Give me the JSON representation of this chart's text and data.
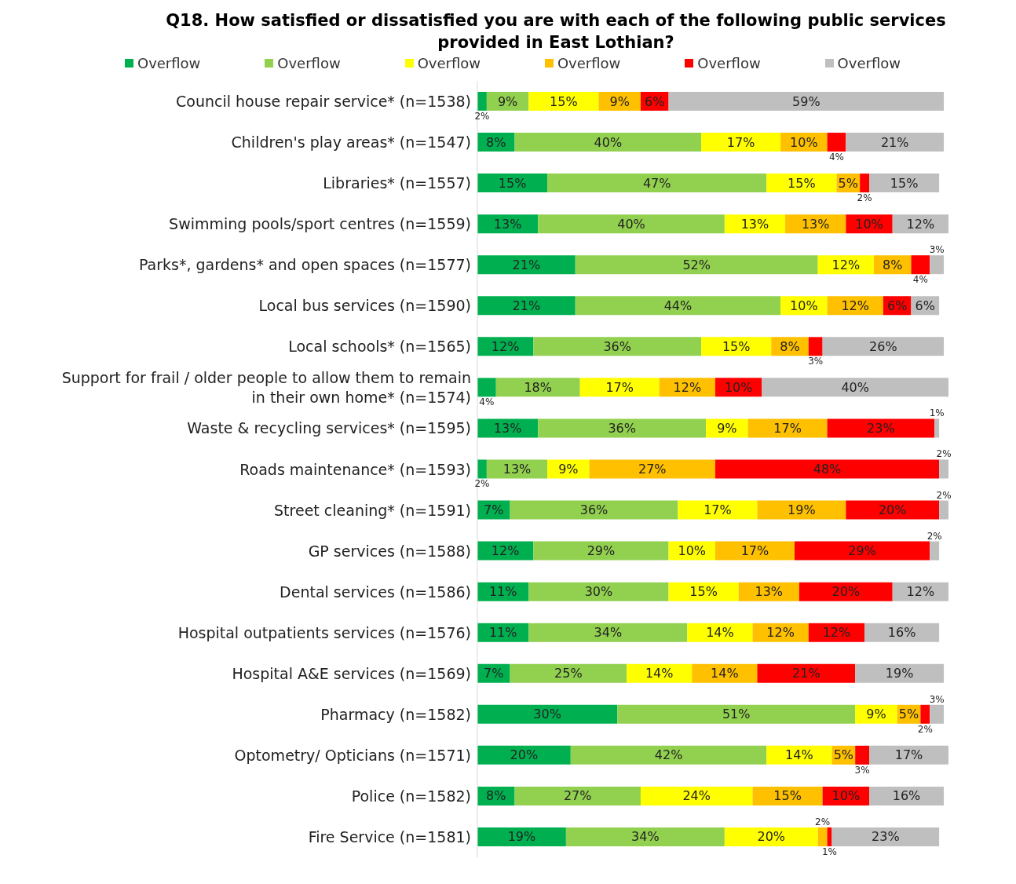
{
  "chart_data": {
    "type": "bar",
    "orientation": "horizontal",
    "stacked": true,
    "title": "Q18. How satisfied or dissatisfied you are with each of the following public services provided in East Lothian?",
    "categories": [
      "Council house repair service* (n=1538)",
      "Children's play areas* (n=1547)",
      "Libraries* (n=1557)",
      "Swimming pools/sport centres (n=1559)",
      "Parks*, gardens* and open spaces (n=1577)",
      "Local bus services (n=1590)",
      "Local schools* (n=1565)",
      "Support for frail / older people to allow them to remain in their own home* (n=1574)",
      "Waste & recycling services* (n=1595)",
      "Roads maintenance* (n=1593)",
      "Street cleaning* (n=1591)",
      "GP services (n=1588)",
      "Dental services (n=1586)",
      "Hospital outpatients services (n=1576)",
      "Hospital A&E services (n=1569)",
      "Pharmacy (n=1582)",
      "Optometry/ Opticians (n=1571)",
      "Police (n=1582)",
      "Fire Service (n=1581)"
    ],
    "series": [
      {
        "name": "Overflow",
        "color": "#00b050",
        "values": [
          2,
          8,
          15,
          13,
          21,
          21,
          12,
          4,
          13,
          2,
          7,
          12,
          11,
          11,
          7,
          30,
          20,
          8,
          19
        ],
        "value_labels": [
          "2%",
          "8%",
          "15%",
          "13%",
          "21%",
          "21%",
          "12%",
          "4%",
          "13%",
          "2%",
          "7%",
          "12%",
          "11%",
          "11%",
          "7%",
          "30%",
          "20%",
          "8%",
          "19%"
        ]
      },
      {
        "name": "Overflow",
        "color": "#92d050",
        "values": [
          9,
          40,
          47,
          40,
          52,
          44,
          36,
          18,
          36,
          13,
          36,
          29,
          30,
          34,
          25,
          51,
          42,
          27,
          34
        ],
        "value_labels": [
          "9%",
          "40%",
          "47%",
          "40%",
          "52%",
          "44%",
          "36%",
          "18%",
          "36%",
          "13%",
          "36%",
          "29%",
          "30%",
          "34%",
          "25%",
          "51%",
          "42%",
          "27%",
          "34%"
        ]
      },
      {
        "name": "Overflow",
        "color": "#ffff00",
        "values": [
          15,
          17,
          15,
          13,
          12,
          10,
          15,
          17,
          9,
          9,
          17,
          10,
          15,
          14,
          14,
          9,
          14,
          24,
          20
        ],
        "value_labels": [
          "15%",
          "17%",
          "15%",
          "13%",
          "12%",
          "10%",
          "15%",
          "17%",
          "9%",
          "9%",
          "17%",
          "10%",
          "15%",
          "14%",
          "14%",
          "9%",
          "14%",
          "24%",
          "20%"
        ]
      },
      {
        "name": "Overflow",
        "color": "#ffc000",
        "values": [
          9,
          10,
          5,
          13,
          8,
          12,
          8,
          12,
          17,
          27,
          19,
          17,
          13,
          12,
          14,
          5,
          5,
          15,
          2
        ],
        "value_labels": [
          "9%",
          "10%",
          "5%",
          "13%",
          "8%",
          "12%",
          "8%",
          "12%",
          "17%",
          "27%",
          "19%",
          "17%",
          "13%",
          "12%",
          "14%",
          "5%",
          "5%",
          "15%",
          "2%"
        ]
      },
      {
        "name": "Overflow",
        "color": "#ff0000",
        "values": [
          6,
          4,
          2,
          10,
          4,
          6,
          3,
          10,
          23,
          48,
          20,
          29,
          20,
          12,
          21,
          2,
          3,
          10,
          1
        ],
        "value_labels": [
          "6%",
          "4%",
          "2%",
          "10%",
          "4%",
          "6%",
          "3%",
          "10%",
          "23%",
          "48%",
          "20%",
          "29%",
          "20%",
          "12%",
          "21%",
          "2%",
          "3%",
          "10%",
          "1%"
        ]
      },
      {
        "name": "Overflow",
        "color": "#bfbfbf",
        "values": [
          59,
          21,
          15,
          12,
          3,
          6,
          26,
          40,
          1,
          2,
          2,
          2,
          12,
          16,
          19,
          3,
          17,
          16,
          23
        ],
        "value_labels": [
          "59%",
          "21%",
          "15%",
          "12%",
          "3%",
          "6%",
          "26%",
          "40%",
          "1%",
          "2%",
          "2%",
          "2%",
          "12%",
          "16%",
          "19%",
          "3%",
          "17%",
          "16%",
          "23%"
        ]
      }
    ],
    "legend": "top",
    "tick_labels": "y",
    "grid": false
  }
}
